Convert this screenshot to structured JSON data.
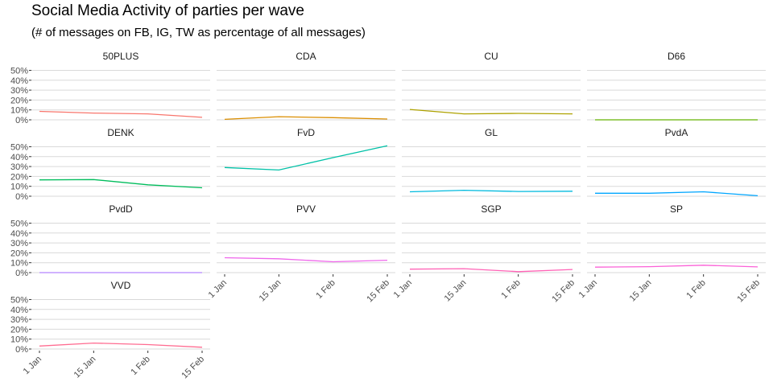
{
  "chart_data": {
    "type": "line",
    "title": "Social Media Activity of parties per wave",
    "subtitle": "(# of messages on FB, IG, TW as percentage of all messages)",
    "xlabel": "",
    "ylabel": "",
    "x": [
      "2021-01-01",
      "2021-01-15",
      "2021-02-01",
      "2021-02-15"
    ],
    "x_tick_labels": [
      "1 Jan",
      "15 Jan",
      "1 Feb",
      "15 Feb"
    ],
    "y_tick_labels": [
      "0%",
      "10%",
      "20%",
      "30%",
      "40%",
      "50%"
    ],
    "y_ticks": [
      0,
      10,
      20,
      30,
      40,
      50
    ],
    "ylim": [
      0,
      52
    ],
    "grid": true,
    "legend": "none",
    "facets": [
      {
        "name": "50PLUS",
        "color": "#F8766D",
        "values": [
          8.5,
          6.8,
          6.0,
          2.5
        ]
      },
      {
        "name": "CDA",
        "color": "#DB8E00",
        "values": [
          0.5,
          3.2,
          2.2,
          0.8
        ]
      },
      {
        "name": "CU",
        "color": "#AEA200",
        "values": [
          10.5,
          6.0,
          6.5,
          6.0
        ]
      },
      {
        "name": "D66",
        "color": "#64B200",
        "values": [
          0.0,
          0.0,
          0.0,
          0.0
        ]
      },
      {
        "name": "DENK",
        "color": "#00BD5C",
        "values": [
          16.5,
          16.8,
          11.5,
          8.5
        ]
      },
      {
        "name": "FvD",
        "color": "#00C1A7",
        "values": [
          29.0,
          26.5,
          39.0,
          51.0
        ]
      },
      {
        "name": "GL",
        "color": "#00BADE",
        "values": [
          4.5,
          6.0,
          4.8,
          5.0
        ]
      },
      {
        "name": "PvdA",
        "color": "#00A6FF",
        "values": [
          3.0,
          3.0,
          4.5,
          0.5
        ]
      },
      {
        "name": "PvdD",
        "color": "#B385FF",
        "values": [
          0.0,
          0.0,
          0.0,
          0.0
        ]
      },
      {
        "name": "PVV",
        "color": "#EF67EB",
        "values": [
          15.0,
          14.0,
          11.0,
          12.5
        ]
      },
      {
        "name": "SGP",
        "color": "#FF63B6",
        "values": [
          3.5,
          4.0,
          1.0,
          3.2
        ]
      },
      {
        "name": "SP",
        "color": "#FB61D7",
        "values": [
          5.5,
          6.0,
          7.5,
          5.8
        ]
      },
      {
        "name": "VVD",
        "color": "#FF6C91",
        "values": [
          3.0,
          6.0,
          4.5,
          1.8
        ]
      }
    ]
  }
}
